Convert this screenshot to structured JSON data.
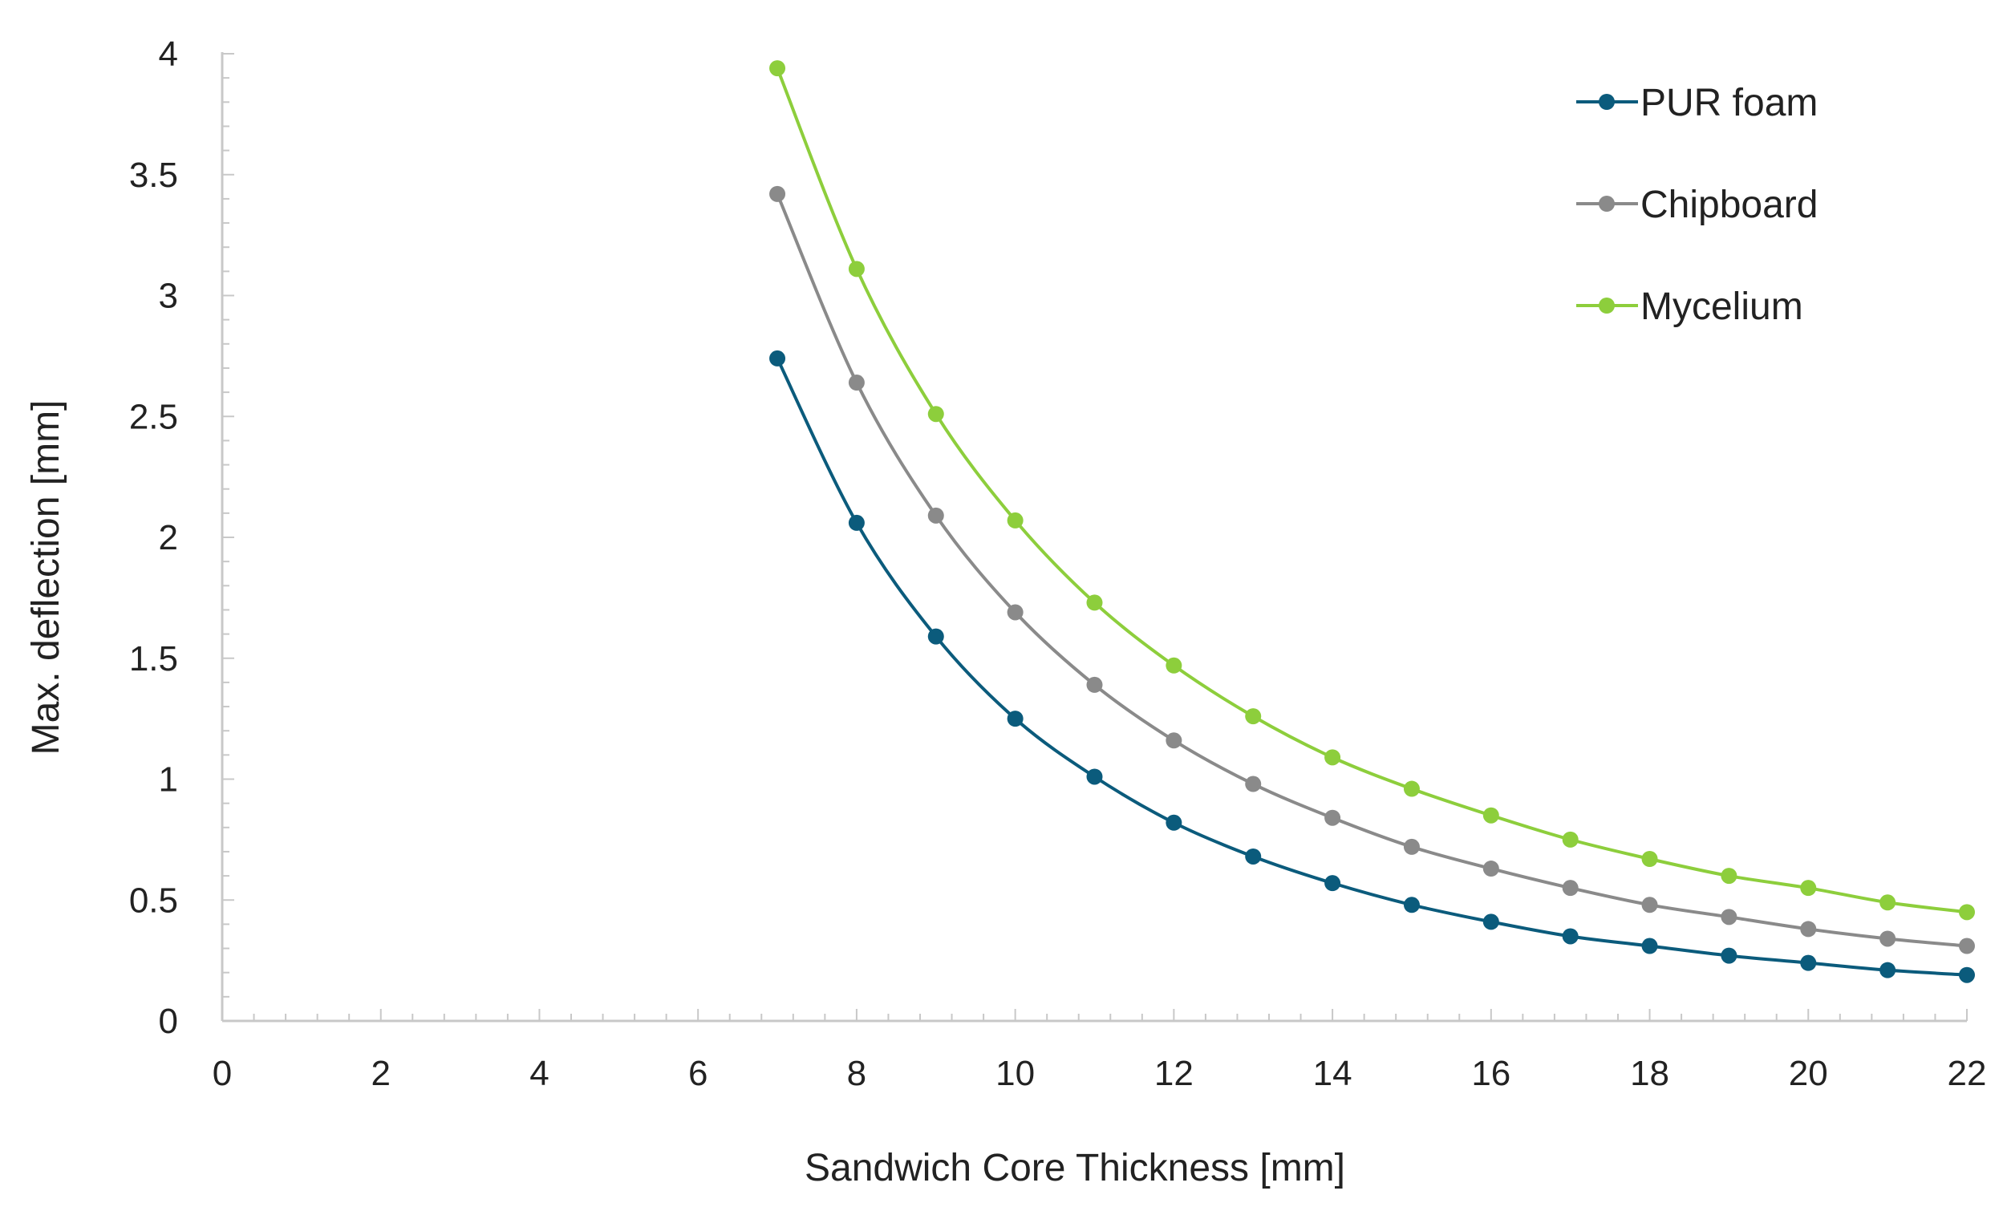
{
  "chart_data": {
    "type": "line",
    "title": "",
    "xlabel": "Sandwich Core Thickness [mm]",
    "ylabel": "Max. deflection [mm]",
    "xlim": [
      0,
      22
    ],
    "ylim": [
      0,
      4
    ],
    "xticks": [
      "0",
      "2",
      "4",
      "6",
      "8",
      "10",
      "12",
      "14",
      "16",
      "18",
      "20",
      "22"
    ],
    "yticks": [
      "0",
      "0.5",
      "1",
      "1.5",
      "2",
      "2.5",
      "3",
      "3.5",
      "4"
    ],
    "grid": false,
    "legend_position": "top-right",
    "x": [
      7,
      8,
      9,
      10,
      11,
      12,
      13,
      14,
      15,
      16,
      17,
      18,
      19,
      20,
      21,
      22
    ],
    "series": [
      {
        "name": "PUR foam",
        "color": "#0b5b7c",
        "values": [
          2.74,
          2.06,
          1.59,
          1.25,
          1.01,
          0.82,
          0.68,
          0.57,
          0.48,
          0.41,
          0.35,
          0.31,
          0.27,
          0.24,
          0.21,
          0.19
        ]
      },
      {
        "name": "Chipboard",
        "color": "#8a8a8a",
        "values": [
          3.42,
          2.64,
          2.09,
          1.69,
          1.39,
          1.16,
          0.98,
          0.84,
          0.72,
          0.63,
          0.55,
          0.48,
          0.43,
          0.38,
          0.34,
          0.31
        ]
      },
      {
        "name": "Mycelium",
        "color": "#8dce3c",
        "values": [
          3.94,
          3.11,
          2.51,
          2.07,
          1.73,
          1.47,
          1.26,
          1.09,
          0.96,
          0.85,
          0.75,
          0.67,
          0.6,
          0.55,
          0.49,
          0.45
        ]
      }
    ]
  }
}
